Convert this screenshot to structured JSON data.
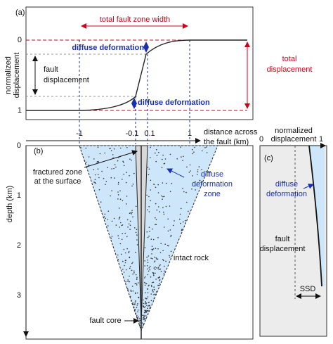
{
  "panel_a": {
    "label": "(a)",
    "width_label": "total fault zone width",
    "y_axis_label": [
      "normalized",
      "displacement"
    ],
    "yticks": [
      "0",
      "1"
    ],
    "diffuse_top": "diffuse deformation",
    "diffuse_bottom": "diffuse deformation",
    "fault_displacement": [
      "fault",
      "displacement"
    ],
    "total_displacement": [
      "total",
      "displacement"
    ]
  },
  "distance_axis": {
    "ticks": [
      "-1",
      "-0.1",
      "0.1",
      "1"
    ],
    "label": [
      "distance across",
      "the fault (km)"
    ]
  },
  "panel_b": {
    "label": "(b)",
    "y_axis_label": "depth (km)",
    "yticks": [
      "0",
      "1",
      "2",
      "3"
    ],
    "fractured_zone": [
      "fractured zone",
      "at the surface"
    ],
    "diffuse_zone": [
      "diffuse",
      "deformation",
      "zone"
    ],
    "intact_rock": "intact rock",
    "fault_core": "fault core"
  },
  "panel_c": {
    "label": "(c)",
    "x_axis_label": [
      "normalized",
      "displacement"
    ],
    "xticks": [
      "0",
      "1"
    ],
    "diffuse": [
      "diffuse",
      "deformation"
    ],
    "fault_displacement": [
      "fault",
      "displacement"
    ],
    "ssd": "SSD"
  }
}
